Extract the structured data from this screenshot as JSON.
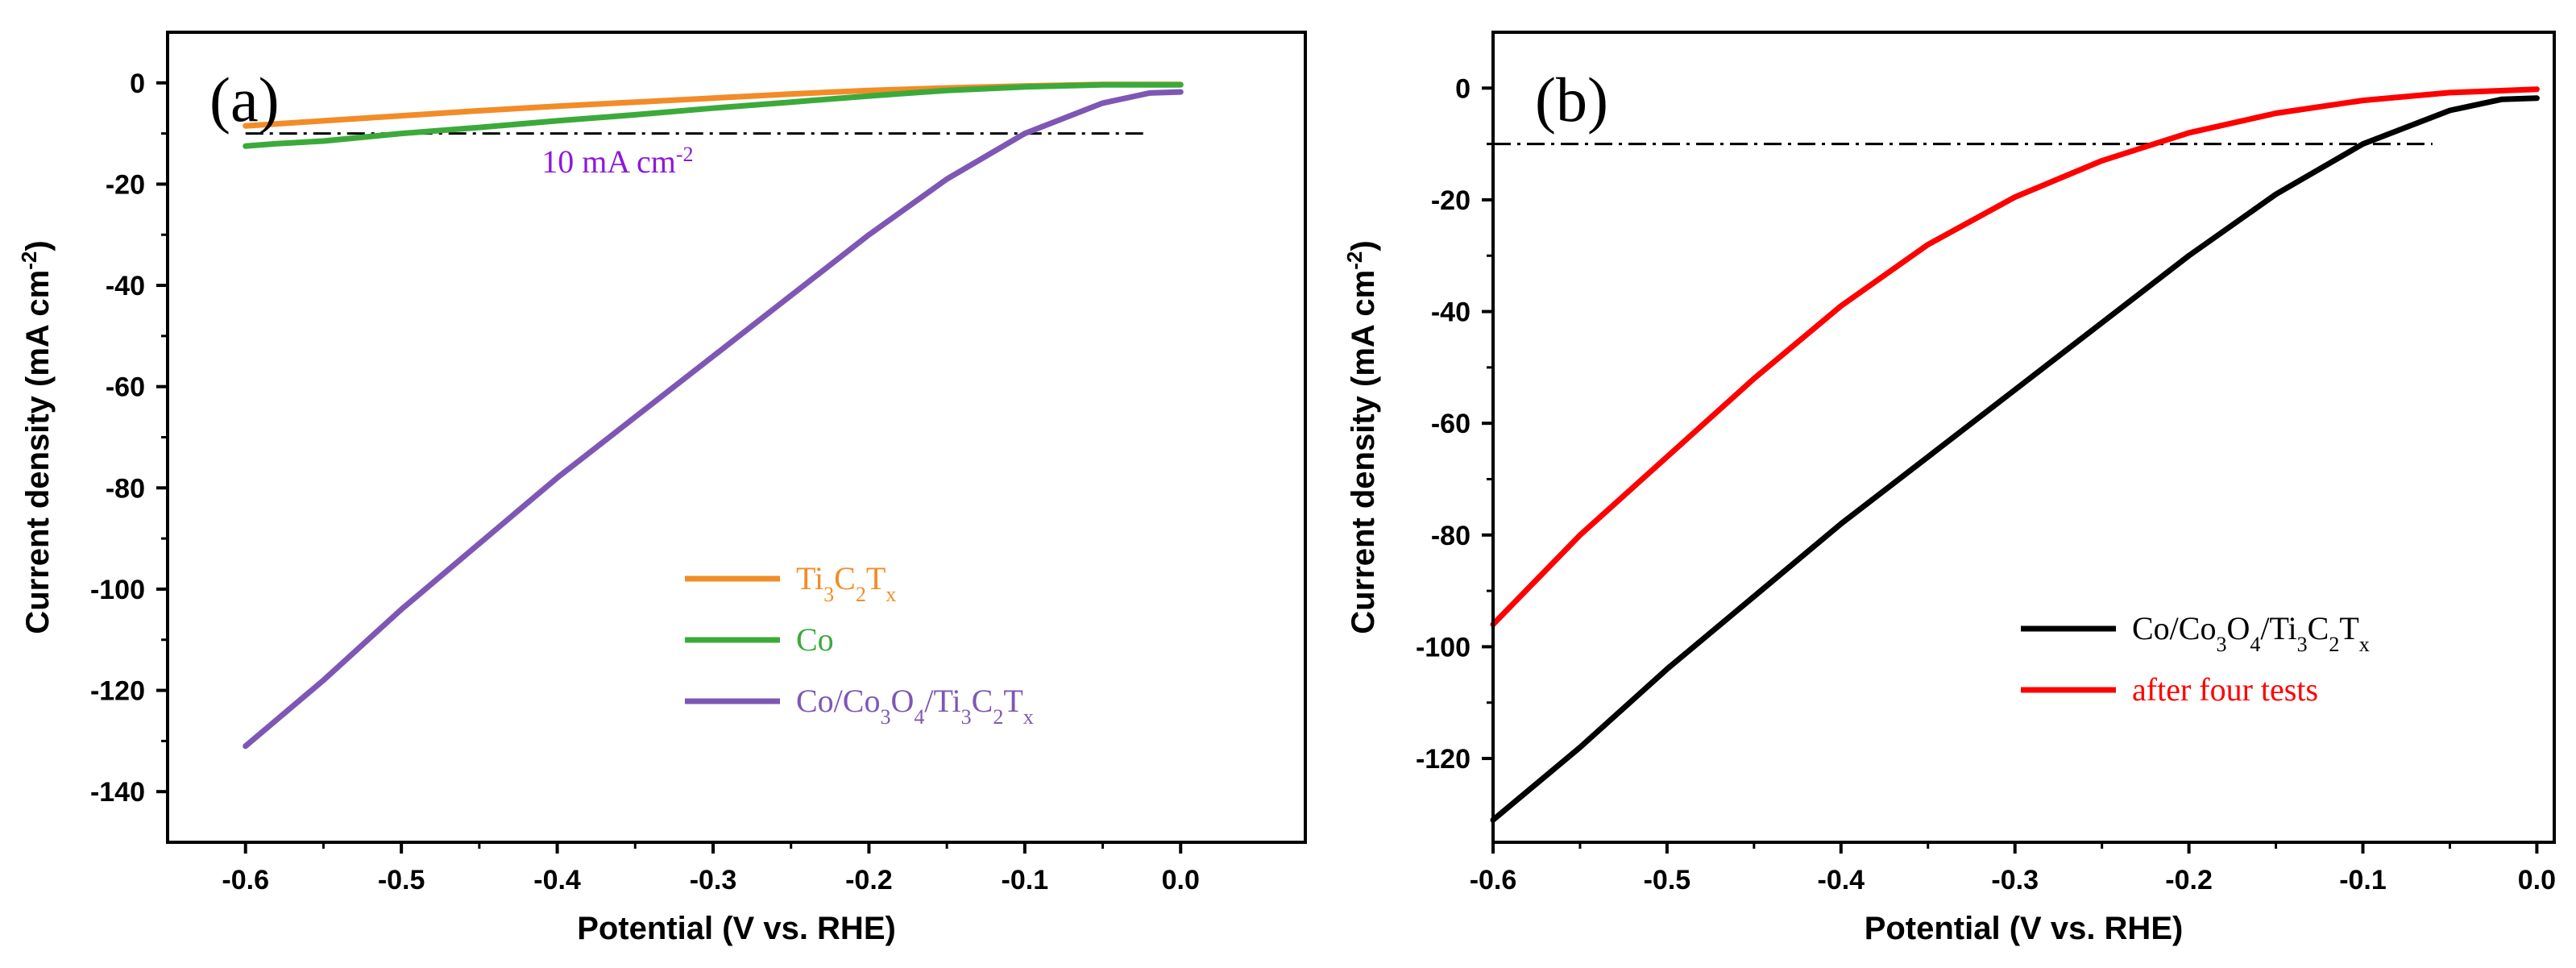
{
  "chart_data": [
    {
      "type": "line",
      "panel_label": "(a)",
      "xlabel": "Potential (V vs. RHE)",
      "ylabel": "Current density (mA cm",
      "ylabel_sup": "-2",
      "ylabel_close": ")",
      "xlim": [
        -0.65,
        0.08
      ],
      "ylim": [
        -150,
        10
      ],
      "xticks": [
        -0.6,
        -0.5,
        -0.4,
        -0.3,
        -0.2,
        -0.1,
        0.0
      ],
      "xtick_labels": [
        "-0.6",
        "-0.5",
        "-0.4",
        "-0.3",
        "-0.2",
        "-0.1",
        "0.0"
      ],
      "yticks": [
        0,
        -20,
        -40,
        -60,
        -80,
        -100,
        -120,
        -140
      ],
      "ytick_labels": [
        "0",
        "-20",
        "-40",
        "-60",
        "-80",
        "-100",
        "-120",
        "-140"
      ],
      "grid": false,
      "legend_position": "bottom-right",
      "reference_line": {
        "y": -10,
        "style": "dash-dot",
        "color": "#000000"
      },
      "annotation": {
        "text": "10 mA cm",
        "sup": "-2",
        "color": "#8B1AD9",
        "x": -0.41,
        "y": -15.5
      },
      "series": [
        {
          "name": "Ti3C2Tx",
          "legend_parts": [
            [
              "Ti",
              ""
            ],
            [
              "3",
              "sub"
            ],
            [
              "C",
              ""
            ],
            [
              "2",
              "sub"
            ],
            [
              "T",
              ""
            ],
            [
              "x",
              "sub"
            ]
          ],
          "color": "#F28C28",
          "x": [
            -0.6,
            -0.55,
            -0.5,
            -0.45,
            -0.4,
            -0.35,
            -0.3,
            -0.25,
            -0.2,
            -0.15,
            -0.1,
            -0.05,
            0.0
          ],
          "y": [
            -8.5,
            -7.5,
            -6.5,
            -5.5,
            -4.6,
            -3.8,
            -3.0,
            -2.2,
            -1.5,
            -1.0,
            -0.6,
            -0.3,
            -0.3
          ]
        },
        {
          "name": "Co",
          "legend_parts": [
            [
              "Co",
              ""
            ]
          ],
          "color": "#3BAA3B",
          "x": [
            -0.6,
            -0.58,
            -0.55,
            -0.5,
            -0.45,
            -0.4,
            -0.35,
            -0.3,
            -0.25,
            -0.2,
            -0.15,
            -0.1,
            -0.05,
            0.0
          ],
          "y": [
            -12.5,
            -12.0,
            -11.5,
            -10.0,
            -8.8,
            -7.5,
            -6.3,
            -5.0,
            -3.8,
            -2.6,
            -1.5,
            -0.8,
            -0.4,
            -0.4
          ]
        },
        {
          "name": "Co/Co3O4/Ti3C2Tx",
          "legend_parts": [
            [
              "Co/Co",
              ""
            ],
            [
              "3",
              "sub"
            ],
            [
              "O",
              ""
            ],
            [
              "4",
              "sub"
            ],
            [
              "/Ti",
              ""
            ],
            [
              "3",
              "sub"
            ],
            [
              "C",
              ""
            ],
            [
              "2",
              "sub"
            ],
            [
              "T",
              ""
            ],
            [
              "x",
              "sub"
            ]
          ],
          "color": "#7E57B5",
          "x": [
            -0.6,
            -0.55,
            -0.5,
            -0.45,
            -0.4,
            -0.35,
            -0.3,
            -0.25,
            -0.2,
            -0.15,
            -0.1,
            -0.05,
            -0.02,
            0.0
          ],
          "y": [
            -131,
            -118,
            -104,
            -91,
            -78,
            -66,
            -54,
            -42,
            -30,
            -19,
            -10,
            -4,
            -2,
            -1.8
          ]
        }
      ]
    },
    {
      "type": "line",
      "panel_label": "(b)",
      "xlabel": "Potential (V vs. RHE)",
      "ylabel": "Current density (mA cm",
      "ylabel_sup": "-2",
      "ylabel_close": ")",
      "xlim": [
        -0.6,
        0.01
      ],
      "ylim": [
        -135,
        10
      ],
      "xticks": [
        -0.6,
        -0.5,
        -0.4,
        -0.3,
        -0.2,
        -0.1,
        0.0
      ],
      "xtick_labels": [
        "-0.6",
        "-0.5",
        "-0.4",
        "-0.3",
        "-0.2",
        "-0.1",
        "0.0"
      ],
      "yticks": [
        0,
        -20,
        -40,
        -60,
        -80,
        -100,
        -120
      ],
      "ytick_labels": [
        "0",
        "-20",
        "-40",
        "-60",
        "-80",
        "-100",
        "-120"
      ],
      "grid": false,
      "legend_position": "bottom-right",
      "reference_line": {
        "y": -10,
        "style": "dash-dot",
        "color": "#000000"
      },
      "series": [
        {
          "name": "Co/Co3O4/Ti3C2Tx",
          "legend_parts": [
            [
              "Co/Co",
              ""
            ],
            [
              "3",
              "sub"
            ],
            [
              "O",
              ""
            ],
            [
              "4",
              "sub"
            ],
            [
              "/Ti",
              ""
            ],
            [
              "3",
              "sub"
            ],
            [
              "C",
              ""
            ],
            [
              "2",
              "sub"
            ],
            [
              "T",
              ""
            ],
            [
              "x",
              "sub"
            ]
          ],
          "color": "#000000",
          "x": [
            -0.6,
            -0.55,
            -0.5,
            -0.45,
            -0.4,
            -0.35,
            -0.3,
            -0.25,
            -0.2,
            -0.15,
            -0.1,
            -0.05,
            -0.02,
            0.0
          ],
          "y": [
            -131,
            -118,
            -104,
            -91,
            -78,
            -66,
            -54,
            -42,
            -30,
            -19,
            -10,
            -4,
            -2,
            -1.8
          ]
        },
        {
          "name": "after four tests",
          "legend_parts": [
            [
              "after four tests",
              ""
            ]
          ],
          "color": "#FF0000",
          "x": [
            -0.6,
            -0.55,
            -0.5,
            -0.45,
            -0.4,
            -0.35,
            -0.3,
            -0.25,
            -0.2,
            -0.15,
            -0.1,
            -0.05,
            0.0
          ],
          "y": [
            -96,
            -80,
            -66,
            -52,
            -39,
            -28,
            -19.5,
            -13,
            -8,
            -4.5,
            -2.2,
            -0.8,
            -0.2
          ]
        }
      ]
    }
  ]
}
